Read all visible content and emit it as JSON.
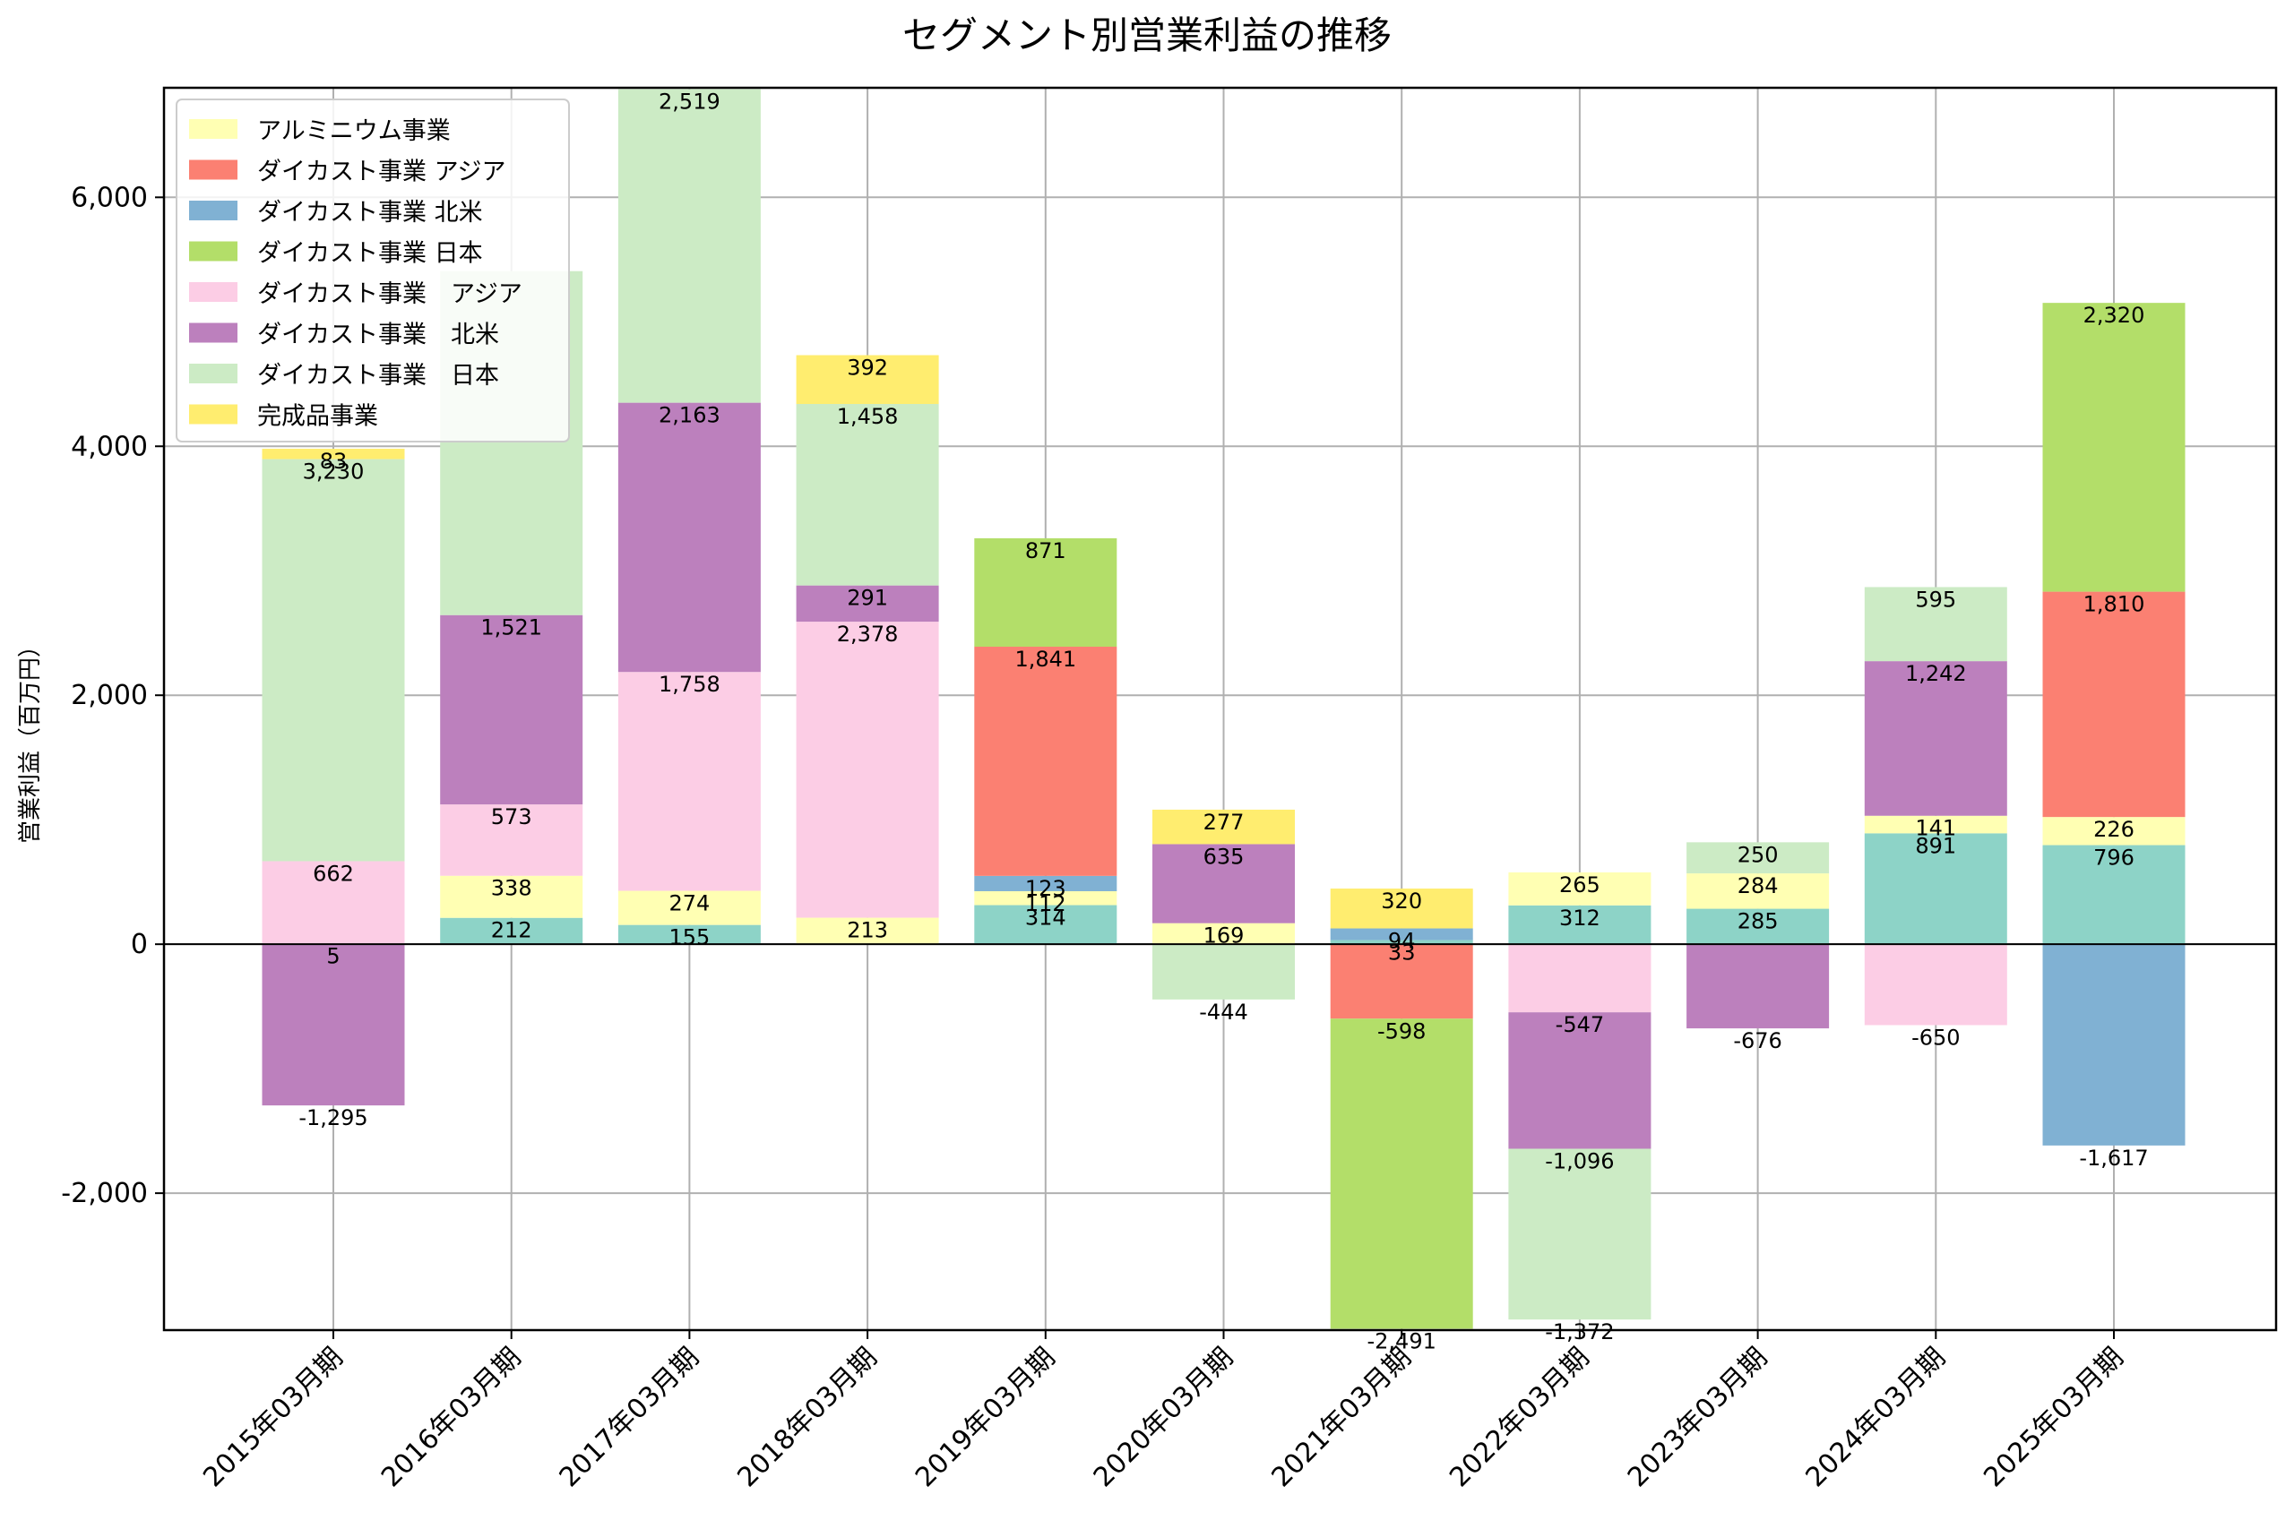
{
  "chart_data": {
    "type": "bar",
    "stacked": true,
    "title": "セグメント別営業利益の推移",
    "xlabel": "",
    "ylabel": "営業利益（百万円）",
    "ylim": [
      -3100,
      6880
    ],
    "yticks": [
      -2000,
      0,
      2000,
      4000,
      6000
    ],
    "ytick_labels": [
      "-2,000",
      "0",
      "2,000",
      "4,000",
      "6,000"
    ],
    "grid": true,
    "legend_position": "top-left",
    "categories": [
      "2015年03月期",
      "2016年03月期",
      "2017年03月期",
      "2018年03月期",
      "2019年03月期",
      "2020年03月期",
      "2021年03月期",
      "2022年03月期",
      "2023年03月期",
      "2024年03月期",
      "2025年03月期"
    ],
    "series": [
      {
        "name": "",
        "color": "#8dd3c7",
        "in_legend": false,
        "values": [
          5,
          212,
          155,
          0,
          314,
          0,
          33,
          312,
          285,
          891,
          796
        ],
        "labels": [
          "5",
          "212",
          "155",
          "",
          "314",
          "",
          "33",
          "312",
          "285",
          "891",
          "796"
        ]
      },
      {
        "name": "アルミニウム事業",
        "color": "#ffffb3",
        "in_legend": true,
        "values": [
          0,
          338,
          274,
          213,
          112,
          169,
          0,
          265,
          284,
          141,
          226
        ],
        "labels": [
          "",
          "338",
          "274",
          "213",
          "112",
          "169",
          "",
          "265",
          "284",
          "141",
          "226"
        ]
      },
      {
        "name": "ダイカスト事業 北米",
        "color": "#80b1d3",
        "in_legend": true,
        "values": [
          0,
          0,
          0,
          0,
          123,
          0,
          94,
          0,
          0,
          0,
          -1617
        ],
        "labels": [
          "",
          "",
          "",
          "",
          "123",
          "",
          "94",
          "",
          "",
          "",
          "-1,617"
        ]
      },
      {
        "name": "ダイカスト事業 アジア",
        "color": "#fb8072",
        "in_legend": true,
        "values": [
          0,
          0,
          0,
          0,
          1841,
          0,
          -598,
          0,
          0,
          0,
          1810
        ],
        "labels": [
          "",
          "",
          "",
          "",
          "1,841",
          "",
          "-598",
          "",
          "",
          "",
          "1,810"
        ]
      },
      {
        "name": "ダイカスト事業 日本",
        "color": "#b3de69",
        "in_legend": true,
        "values": [
          0,
          0,
          0,
          0,
          871,
          0,
          -2491,
          0,
          0,
          0,
          2320
        ],
        "labels": [
          "",
          "",
          "",
          "",
          "871",
          "",
          "-2,491",
          "",
          "",
          "",
          "2,320"
        ]
      },
      {
        "name": "ダイカスト事業　アジア",
        "color": "#fccde5",
        "in_legend": true,
        "values": [
          662,
          573,
          1758,
          2378,
          0,
          0,
          0,
          -547,
          0,
          -650,
          0
        ],
        "labels": [
          "662",
          "573",
          "1,758",
          "2,378",
          "",
          "",
          "",
          "-547",
          "",
          "-650",
          ""
        ]
      },
      {
        "name": "ダイカスト事業　北米",
        "color": "#bc80bd",
        "in_legend": true,
        "values": [
          -1295,
          1521,
          2163,
          291,
          0,
          635,
          0,
          -1096,
          -676,
          1242,
          0
        ],
        "labels": [
          "-1,295",
          "1,521",
          "2,163",
          "291",
          "",
          "635",
          "",
          "-1,096",
          "-676",
          "1,242",
          ""
        ]
      },
      {
        "name": "ダイカスト事業　日本",
        "color": "#ccebc5",
        "in_legend": true,
        "values": [
          3230,
          2763,
          2519,
          1458,
          0,
          -444,
          0,
          -1372,
          250,
          595,
          0
        ],
        "labels": [
          "3,230",
          "",
          "2,519",
          "1,458",
          "",
          "-444",
          "",
          "-1,372",
          "250",
          "595",
          ""
        ]
      },
      {
        "name": "完成品事業",
        "color": "#ffed6f",
        "in_legend": true,
        "values": [
          83,
          0,
          0,
          392,
          0,
          277,
          320,
          0,
          0,
          0,
          0
        ],
        "labels": [
          "83",
          "",
          "",
          "392",
          "",
          "277",
          "320",
          "",
          "",
          "",
          ""
        ]
      }
    ],
    "legend_order": [
      "アルミニウム事業",
      "ダイカスト事業 アジア",
      "ダイカスト事業 北米",
      "ダイカスト事業 日本",
      "ダイカスト事業　アジア",
      "ダイカスト事業　北米",
      "ダイカスト事業　日本",
      "完成品事業"
    ]
  }
}
